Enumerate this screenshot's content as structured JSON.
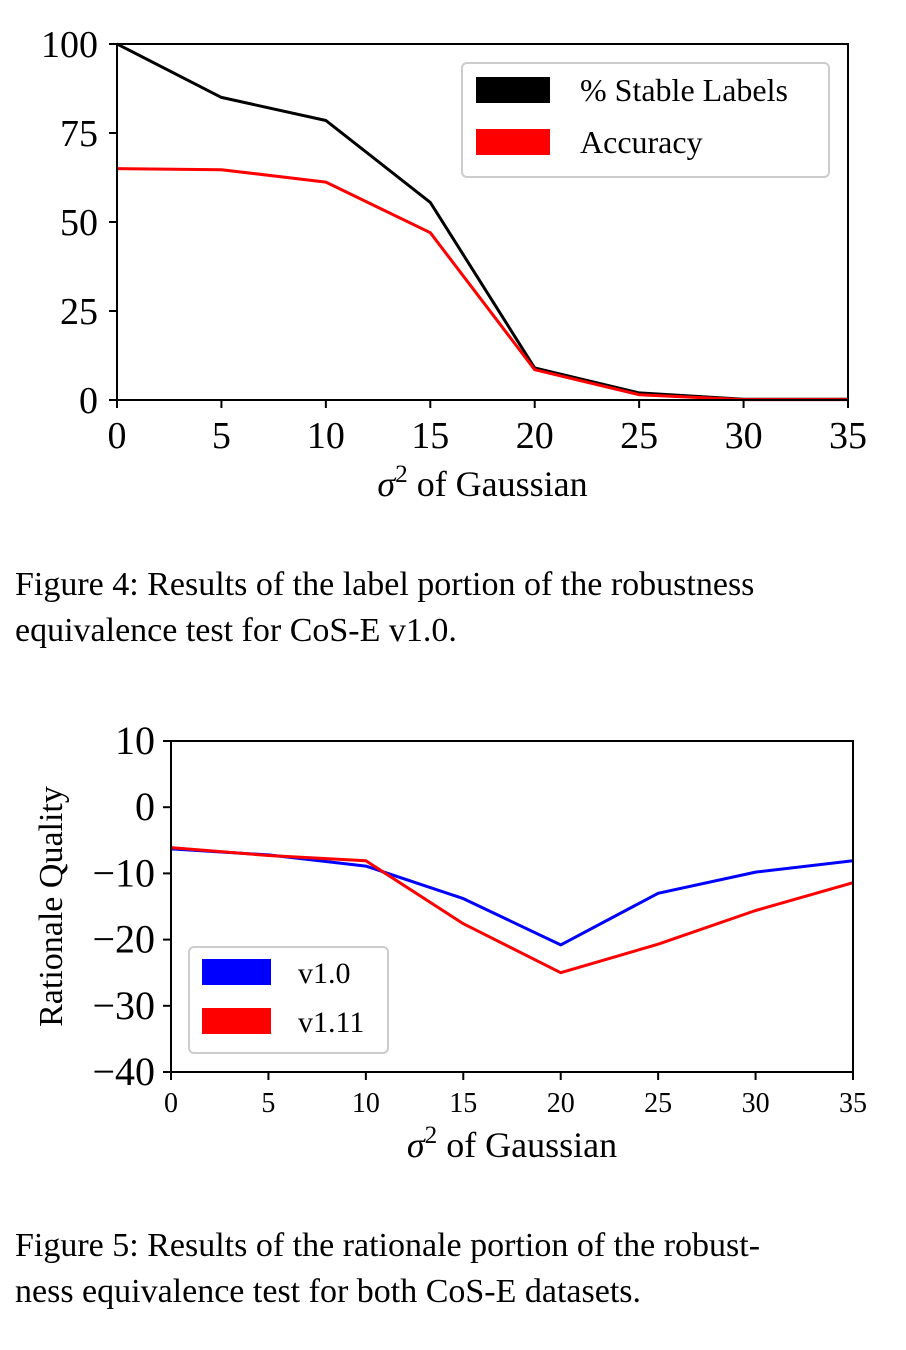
{
  "chart_data": [
    {
      "type": "line",
      "x": [
        0,
        5,
        10,
        15,
        20,
        25,
        30,
        35
      ],
      "series": [
        {
          "name": "% Stable Labels",
          "color": "#000000",
          "values": [
            100,
            85,
            78.5,
            55.5,
            9,
            2,
            0.2,
            0.2
          ]
        },
        {
          "name": "Accuracy",
          "color": "#ff0000",
          "values": [
            65,
            64.7,
            61.2,
            47,
            8.5,
            1.5,
            0.1,
            0.1
          ]
        }
      ],
      "xlabel_symbol": "σ",
      "xlabel_sup": "2",
      "xlabel_text": " of Gaussian",
      "ylabel": "",
      "xlim": [
        0,
        35
      ],
      "ylim": [
        0,
        100
      ],
      "xticks": [
        "0",
        "5",
        "10",
        "15",
        "20",
        "25",
        "30",
        "35"
      ],
      "yticks": [
        "0",
        "25",
        "50",
        "75",
        "100"
      ],
      "legend_position": "top-right",
      "grid": false
    },
    {
      "type": "line",
      "x": [
        0,
        5,
        10,
        15,
        20,
        25,
        30,
        35
      ],
      "series": [
        {
          "name": "v1.0",
          "color": "#0000ff",
          "values": [
            -6.3,
            -7.2,
            -8.9,
            -13.8,
            -20.8,
            -13,
            -9.8,
            -8.1
          ]
        },
        {
          "name": "v1.11",
          "color": "#ff0000",
          "values": [
            -6.1,
            -7.3,
            -8.1,
            -17.6,
            -25,
            -20.7,
            -15.6,
            -11.4
          ]
        }
      ],
      "xlabel_symbol": "σ",
      "xlabel_sup": "2",
      "xlabel_text": " of Gaussian",
      "ylabel": "Rationale Quality",
      "xlim": [
        0,
        35
      ],
      "ylim": [
        -40,
        10
      ],
      "xticks": [
        "0",
        "5",
        "10",
        "15",
        "20",
        "25",
        "30",
        "35"
      ],
      "yticks": [
        "−40",
        "−30",
        "−20",
        "−10",
        "0",
        "10"
      ],
      "legend_position": "lower-left",
      "grid": false
    }
  ],
  "captions": {
    "fig4": {
      "line1": "Figure 4: Results of the label portion of the robustness",
      "line2": "equivalence test for CoS-E v1.0."
    },
    "fig5": {
      "line1": "Figure 5: Results of the rationale portion of the robust-",
      "line2": "ness equivalence test for both CoS-E datasets."
    }
  }
}
